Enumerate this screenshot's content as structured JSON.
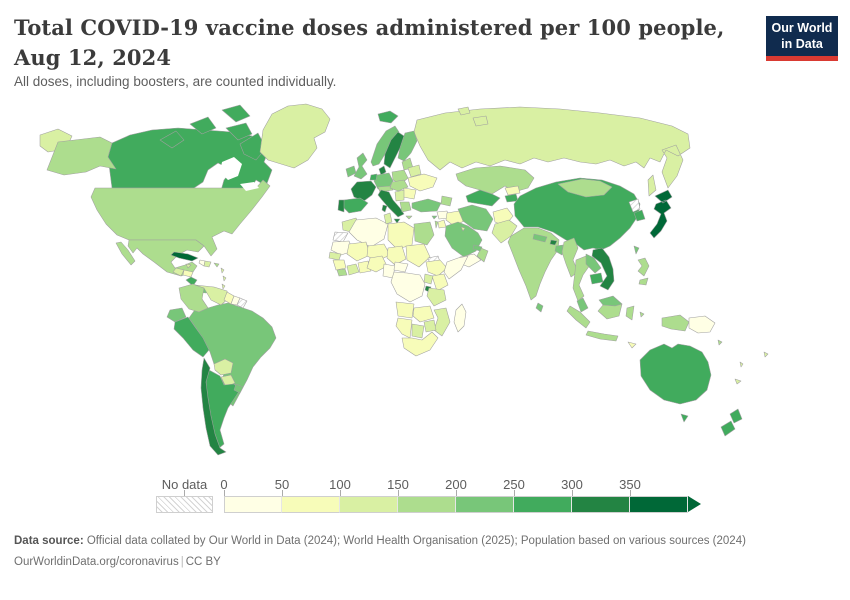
{
  "header": {
    "title": "Total COVID-19 vaccine doses administered per 100 people, Aug 12, 2024",
    "subtitle": "All doses, including boosters, are counted individually.",
    "logo": {
      "line1": "Our World",
      "line2": "in Data",
      "bg_color": "#102b4e",
      "accent_color": "#d93a32"
    }
  },
  "legend": {
    "no_data_label": "No data",
    "ticks": [
      "0",
      "50",
      "100",
      "150",
      "200",
      "250",
      "300",
      "350"
    ],
    "bands": [
      "#ffffe5",
      "#f7fcb9",
      "#d9f0a3",
      "#addd8e",
      "#78c679",
      "#41ab5d",
      "#238443",
      "#006837"
    ]
  },
  "map": {
    "ocean_color": "#ffffff",
    "border_color": "#a0a0a0",
    "regions": {
      "russia-far-east-fragment": "#d9f0a3",
      "alaska": "#addd8e",
      "canada": "#41ab5d",
      "arctic-islands": "#41ab5d",
      "greenland": "#d9f0a3",
      "usa": "#addd8e",
      "mexico": "#addd8e",
      "guatemala": "#d9f0a3",
      "honduras": "#f7fcb9",
      "nicaragua": "#41ab5d",
      "costa-rica": "#41ab5d",
      "panama": "#78c679",
      "cuba": "#006837",
      "jamaica": "#d9f0a3",
      "haiti": "#ffffe5",
      "dominican-republic": "#d9f0a3",
      "puerto-rico": "#addd8e",
      "lesser-antilles": "#d9f0a3",
      "colombia": "#addd8e",
      "venezuela": "#d9f0a3",
      "guyana": "#f7fcb9",
      "suriname": "#ffffe5",
      "french-guiana": "no-data",
      "ecuador": "#78c679",
      "peru": "#41ab5d",
      "brazil": "#78c679",
      "bolivia": "#d9f0a3",
      "paraguay": "#d9f0a3",
      "chile": "#238443",
      "argentina": "#41ab5d",
      "uruguay": "#78c679",
      "iceland": "#41ab5d",
      "svalbard": "#d9f0a3",
      "ireland": "#78c679",
      "uk": "#78c679",
      "norway": "#78c679",
      "sweden": "#238443",
      "finland": "#78c679",
      "denmark": "#238443",
      "germany": "#78c679",
      "benelux": "#41ab5d",
      "france": "#238443",
      "spain": "#41ab5d",
      "portugal": "#238443",
      "italy": "#238443",
      "alpine": "#addd8e",
      "poland": "#addd8e",
      "czechia-hungary": "#addd8e",
      "baltics": "#addd8e",
      "belarus": "#d9f0a3",
      "ukraine": "#f7fcb9",
      "romania-bulgaria": "#f7fcb9",
      "balkans": "#d9f0a3",
      "greece": "#addd8e",
      "russia": "#d9f0a3",
      "turkey": "#78c679",
      "caucasus": "#addd8e",
      "cyprus": "#78c679",
      "syria": "#ffffe5",
      "israel": "#addd8e",
      "jordan": "#f7fcb9",
      "iraq": "#f7fcb9",
      "saudi-arabia": "#78c679",
      "yemen": "#ffffe5",
      "oman": "#addd8e",
      "uae": "#78c679",
      "kuwait": "#d9f0a3",
      "iran": "#78c679",
      "afghanistan": "#f7fcb9",
      "turkmenistan-uzbekistan": "#41ab5d",
      "kyrgyzstan": "#f7fcb9",
      "tajikistan": "#41ab5d",
      "kazakhstan": "#addd8e",
      "pakistan": "#d9f0a3",
      "india": "#addd8e",
      "nepal": "#78c679",
      "bhutan": "#238443",
      "bangladesh": "#78c679",
      "sri-lanka": "#78c679",
      "myanmar": "#addd8e",
      "thailand": "#addd8e",
      "laos": "#78c679",
      "cambodia": "#41ab5d",
      "vietnam": "#238443",
      "china": "#41ab5d",
      "mongolia": "#addd8e",
      "taiwan": "#78c679",
      "north-korea": "no-data",
      "south-korea": "#41ab5d",
      "japan": "#006837",
      "philippines": "#addd8e",
      "malaysia": "#78c679",
      "indonesia": "#addd8e",
      "timor-leste": "#f7fcb9",
      "papua-new-guinea": "#ffffe5",
      "australia": "#41ab5d",
      "new-zealand": "#41ab5d",
      "new-caledonia": "#d9f0a3",
      "fiji": "#d9f0a3",
      "vanuatu": "#d9f0a3",
      "solomon-islands": "#addd8e",
      "morocco": "#d9f0a3",
      "western-sahara": "no-data",
      "algeria": "#ffffe5",
      "tunisia": "#d9f0a3",
      "libya": "#f7fcb9",
      "egypt": "#addd8e",
      "mauritania": "#ffffe5",
      "mali": "#f7fcb9",
      "niger": "#f7fcb9",
      "chad": "#f7fcb9",
      "sudan": "#f7fcb9",
      "eritrea": "no-data",
      "senegal": "#d9f0a3",
      "guinea": "#f7fcb9",
      "sierra-leone-liberia": "#addd8e",
      "cote-divoire": "#d9f0a3",
      "ghana-togo-benin": "#f7fcb9",
      "nigeria": "#f7fcb9",
      "cameroon-gabon": "#ffffe5",
      "central-african-republic": "#ffffe5",
      "ethiopia": "#f7fcb9",
      "somalia": "#ffffe5",
      "kenya": "#f7fcb9",
      "uganda": "#d9f0a3",
      "rwanda-burundi": "#238443",
      "drc": "#ffffe5",
      "tanzania": "#d9f0a3",
      "angola": "#f7fcb9",
      "zambia": "#f7fcb9",
      "mozambique": "#d9f0a3",
      "zimbabwe": "#d9f0a3",
      "botswana": "#d9f0a3",
      "namibia": "#f7fcb9",
      "south-africa": "#f7fcb9",
      "madagascar": "#ffffe5"
    }
  },
  "footer": {
    "source_label": "Data source:",
    "source_text": " Official data collated by Our World in Data (2024); World Health Organisation (2025); Population based on various sources (2024)",
    "link_text": "OurWorldinData.org/coronavirus",
    "separator": "|",
    "license": "CC BY"
  },
  "chart_data": {
    "type": "heatmap",
    "subtype": "world-choropleth",
    "title": "Total COVID-19 vaccine doses administered per 100 people, Aug 12, 2024",
    "subtitle": "All doses, including boosters, are counted individually.",
    "unit": "doses per 100 people",
    "date": "Aug 12, 2024",
    "legend_bins": [
      {
        "range": "0–50",
        "color": "#ffffe5"
      },
      {
        "range": "50–100",
        "color": "#f7fcb9"
      },
      {
        "range": "100–150",
        "color": "#d9f0a3"
      },
      {
        "range": "150–200",
        "color": "#addd8e"
      },
      {
        "range": "200–250",
        "color": "#78c679"
      },
      {
        "range": "250–300",
        "color": "#41ab5d"
      },
      {
        "range": "300–350",
        "color": "#238443"
      },
      {
        "range": "350+",
        "color": "#006837"
      },
      {
        "range": "No data",
        "color": "hatched"
      }
    ],
    "countries": {
      "Canada": "250–300",
      "United States": "150–200",
      "Greenland": "100–150",
      "Mexico": "150–200",
      "Cuba": "350+",
      "Nicaragua": "250–300",
      "Costa Rica": "250–300",
      "Panama": "200–250",
      "Colombia": "150–200",
      "Venezuela": "100–150",
      "Ecuador": "200–250",
      "Peru": "250–300",
      "Brazil": "200–250",
      "Bolivia": "100–150",
      "Paraguay": "100–150",
      "Chile": "300–350",
      "Argentina": "250–300",
      "Uruguay": "200–250",
      "Iceland": "250–300",
      "United Kingdom": "200–250",
      "Ireland": "200–250",
      "Norway": "200–250",
      "Sweden": "300–350",
      "Finland": "200–250",
      "Denmark": "300–350",
      "Germany": "200–250",
      "France": "300–350",
      "Spain": "250–300",
      "Portugal": "300–350",
      "Italy": "300–350",
      "Poland": "150–200",
      "Ukraine": "50–100",
      "Romania": "50–100",
      "Greece": "150–200",
      "Russia": "100–150",
      "Turkey": "200–250",
      "Kazakhstan": "150–200",
      "Uzbekistan": "250–300",
      "Iran": "200–250",
      "Saudi Arabia": "200–250",
      "Yemen": "0–50",
      "Iraq": "50–100",
      "Egypt": "150–200",
      "Morocco": "100–150",
      "Algeria": "0–50",
      "Libya": "50–100",
      "Pakistan": "100–150",
      "Afghanistan": "50–100",
      "India": "150–200",
      "Nepal": "200–250",
      "Bhutan": "300–350",
      "Bangladesh": "200–250",
      "Sri Lanka": "200–250",
      "Myanmar": "150–200",
      "Thailand": "150–200",
      "Laos": "200–250",
      "Cambodia": "250–300",
      "Vietnam": "300–350",
      "China": "250–300",
      "Mongolia": "150–200",
      "Japan": "350+",
      "South Korea": "250–300",
      "North Korea": "No data",
      "Taiwan": "200–250",
      "Philippines": "150–200",
      "Malaysia": "200–250",
      "Indonesia": "150–200",
      "Papua New Guinea": "0–50",
      "Australia": "250–300",
      "New Zealand": "250–300",
      "Nigeria": "50–100",
      "Ethiopia": "50–100",
      "Kenya": "50–100",
      "Tanzania": "100–150",
      "DR Congo": "0–50",
      "Rwanda": "300–350",
      "Mozambique": "100–150",
      "South Africa": "50–100",
      "Madagascar": "0–50",
      "Western Sahara": "No data",
      "Eritrea": "No data",
      "French Guiana": "No data"
    }
  }
}
